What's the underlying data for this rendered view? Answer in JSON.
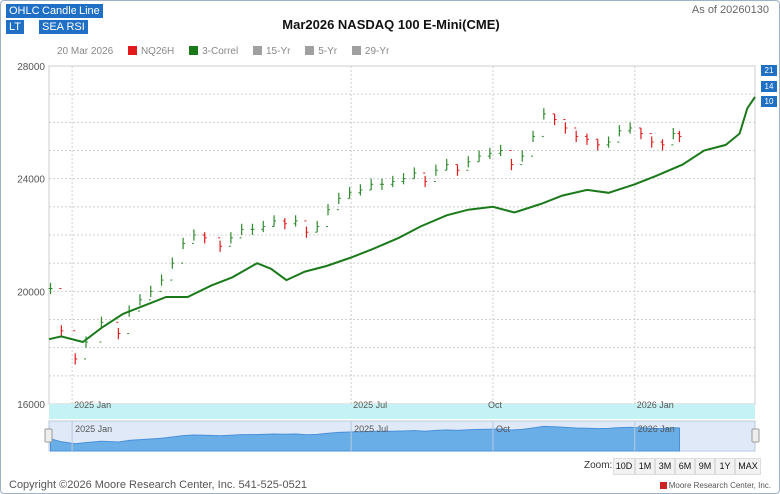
{
  "toolbar": {
    "buttons": [
      {
        "label": "OHLC",
        "key": "ohlc"
      },
      {
        "label": "Candle",
        "key": "candle"
      },
      {
        "label": "Line",
        "key": "line"
      },
      {
        "label": "LT",
        "key": "lt"
      },
      {
        "label": "SEA RSI",
        "key": "sea-rsi"
      }
    ]
  },
  "as_of": "As of 20260130",
  "legend": {
    "date": "20 Mar 2026",
    "items": [
      {
        "label": "NQ26H",
        "color": "#e31a1c"
      },
      {
        "label": "3-Correl",
        "color": "#1a7a1a"
      },
      {
        "label": "15-Yr",
        "color": "#a0a0a0"
      },
      {
        "label": "5-Yr",
        "color": "#a0a0a0"
      },
      {
        "label": "29-Yr",
        "color": "#a0a0a0"
      }
    ]
  },
  "badges": [
    "21",
    "14",
    "10"
  ],
  "footer": {
    "copyright": "Copyright ©2026 Moore Research Center, Inc. 541-525-0521",
    "credit": "Moore Research Center, Inc."
  },
  "zoom": {
    "label": "Zoom:",
    "options": [
      "10D",
      "1M",
      "3M",
      "6M",
      "9M",
      "1Y",
      "MAX"
    ]
  },
  "colors": {
    "up": "#2e8b2e",
    "down": "#e31a1c",
    "correl": "#1a7a1a",
    "navigator": "#6aaee8",
    "accent": "#1f6fc5"
  },
  "chart_data": {
    "type": "line",
    "title": "Mar2026 NASDAQ 100 E-Mini(CME)",
    "xlabel": "",
    "ylabel": "",
    "ylim": [
      16000,
      28000
    ],
    "y_ticks": [
      16000,
      20000,
      24000,
      28000
    ],
    "x_range": [
      "2024-12-17",
      "2026-03-20"
    ],
    "x_ticks": [
      {
        "date": "2025-01-01",
        "label": "2025 Jan"
      },
      {
        "date": "2025-07-01",
        "label": "2025 Jul"
      },
      {
        "date": "2025-10-01",
        "label": "Oct"
      },
      {
        "date": "2026-01-01",
        "label": "2026 Jan"
      }
    ],
    "grid": true,
    "legend_position": "top-left",
    "series": [
      {
        "name": "NQ26H",
        "type": "ohlc",
        "points": [
          [
            "2024-12-18",
            20100
          ],
          [
            "2024-12-25",
            18600
          ],
          [
            "2025-01-03",
            17600
          ],
          [
            "2025-01-10",
            18200
          ],
          [
            "2025-01-20",
            18900
          ],
          [
            "2025-01-31",
            18500
          ],
          [
            "2025-02-07",
            19300
          ],
          [
            "2025-02-14",
            19700
          ],
          [
            "2025-02-21",
            20000
          ],
          [
            "2025-02-28",
            20400
          ],
          [
            "2025-03-07",
            21000
          ],
          [
            "2025-03-14",
            21700
          ],
          [
            "2025-03-21",
            22000
          ],
          [
            "2025-03-28",
            21900
          ],
          [
            "2025-04-07",
            21600
          ],
          [
            "2025-04-14",
            21900
          ],
          [
            "2025-04-21",
            22200
          ],
          [
            "2025-04-28",
            22200
          ],
          [
            "2025-05-05",
            22300
          ],
          [
            "2025-05-12",
            22500
          ],
          [
            "2025-05-19",
            22400
          ],
          [
            "2025-05-26",
            22500
          ],
          [
            "2025-06-02",
            22100
          ],
          [
            "2025-06-09",
            22300
          ],
          [
            "2025-06-16",
            22900
          ],
          [
            "2025-06-23",
            23300
          ],
          [
            "2025-06-30",
            23500
          ],
          [
            "2025-07-07",
            23600
          ],
          [
            "2025-07-14",
            23800
          ],
          [
            "2025-07-21",
            23800
          ],
          [
            "2025-07-28",
            23900
          ],
          [
            "2025-08-04",
            24000
          ],
          [
            "2025-08-11",
            24200
          ],
          [
            "2025-08-18",
            23900
          ],
          [
            "2025-08-25",
            24300
          ],
          [
            "2025-09-01",
            24500
          ],
          [
            "2025-09-08",
            24300
          ],
          [
            "2025-09-15",
            24600
          ],
          [
            "2025-09-22",
            24800
          ],
          [
            "2025-09-29",
            24900
          ],
          [
            "2025-10-06",
            25000
          ],
          [
            "2025-10-13",
            24500
          ],
          [
            "2025-10-20",
            24800
          ],
          [
            "2025-10-27",
            25500
          ],
          [
            "2025-11-03",
            26300
          ],
          [
            "2025-11-10",
            26100
          ],
          [
            "2025-11-17",
            25800
          ],
          [
            "2025-11-24",
            25500
          ],
          [
            "2025-12-01",
            25400
          ],
          [
            "2025-12-08",
            25200
          ],
          [
            "2025-12-15",
            25300
          ],
          [
            "2025-12-22",
            25700
          ],
          [
            "2025-12-29",
            25800
          ],
          [
            "2026-01-05",
            25600
          ],
          [
            "2026-01-12",
            25300
          ],
          [
            "2026-01-19",
            25200
          ],
          [
            "2026-01-26",
            25600
          ],
          [
            "2026-01-30",
            25500
          ]
        ]
      },
      {
        "name": "3-Correl",
        "type": "line",
        "points": [
          [
            "2024-12-17",
            18300
          ],
          [
            "2024-12-25",
            18400
          ],
          [
            "2025-01-08",
            18200
          ],
          [
            "2025-01-20",
            18700
          ],
          [
            "2025-02-03",
            19200
          ],
          [
            "2025-02-17",
            19500
          ],
          [
            "2025-03-03",
            19800
          ],
          [
            "2025-03-17",
            19800
          ],
          [
            "2025-04-01",
            20200
          ],
          [
            "2025-04-15",
            20500
          ],
          [
            "2025-05-01",
            21000
          ],
          [
            "2025-05-10",
            20800
          ],
          [
            "2025-05-20",
            20400
          ],
          [
            "2025-06-01",
            20700
          ],
          [
            "2025-06-15",
            20900
          ],
          [
            "2025-07-01",
            21200
          ],
          [
            "2025-07-15",
            21500
          ],
          [
            "2025-08-01",
            21900
          ],
          [
            "2025-08-15",
            22300
          ],
          [
            "2025-09-01",
            22700
          ],
          [
            "2025-09-15",
            22900
          ],
          [
            "2025-10-01",
            23000
          ],
          [
            "2025-10-15",
            22800
          ],
          [
            "2025-11-01",
            23100
          ],
          [
            "2025-11-15",
            23400
          ],
          [
            "2025-12-01",
            23600
          ],
          [
            "2025-12-15",
            23500
          ],
          [
            "2026-01-01",
            23800
          ],
          [
            "2026-01-15",
            24100
          ],
          [
            "2026-02-01",
            24500
          ],
          [
            "2026-02-15",
            25000
          ],
          [
            "2026-03-01",
            25200
          ],
          [
            "2026-03-10",
            25600
          ],
          [
            "2026-03-15",
            26500
          ],
          [
            "2026-03-20",
            26900
          ]
        ]
      }
    ]
  }
}
